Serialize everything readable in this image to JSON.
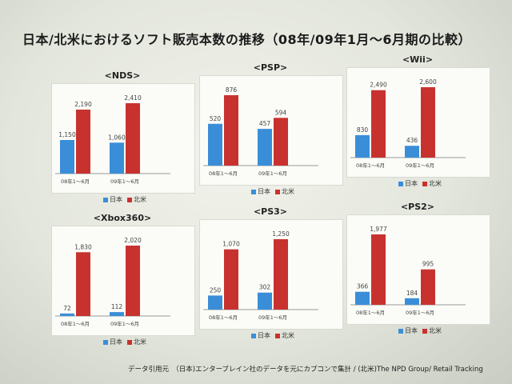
{
  "title": "日本/北米におけるソフト販売本数の推移（08年/09年1月～6月期の比較）",
  "colors": {
    "japan": "#3a8ed8",
    "na": "#c8322e"
  },
  "legend": {
    "japan": "日本",
    "na": "北米"
  },
  "footer": "データ引用元　（日本)エンターブレイン社のデータを元にカプコンで集計 / (北米)The NPD Group/ Retail Tracking",
  "chart_data": [
    {
      "type": "bar",
      "title": "<NDS>",
      "categories": [
        "08年1～6月",
        "09年1～6月"
      ],
      "series": [
        {
          "name": "日本",
          "values": [
            1150,
            1060
          ],
          "labels": [
            "1,150",
            "1,060"
          ]
        },
        {
          "name": "北米",
          "values": [
            2190,
            2410
          ],
          "labels": [
            "2,190",
            "2,410"
          ]
        }
      ]
    },
    {
      "type": "bar",
      "title": "<PSP>",
      "categories": [
        "08年1～6月",
        "09年1～6月"
      ],
      "series": [
        {
          "name": "日本",
          "values": [
            520,
            457
          ],
          "labels": [
            "520",
            "457"
          ]
        },
        {
          "name": "北米",
          "values": [
            876,
            594
          ],
          "labels": [
            "876",
            "594"
          ]
        }
      ]
    },
    {
      "type": "bar",
      "title": "<Wii>",
      "categories": [
        "08年1～6月",
        "09年1～6月"
      ],
      "series": [
        {
          "name": "日本",
          "values": [
            830,
            436
          ],
          "labels": [
            "830",
            "436"
          ]
        },
        {
          "name": "北米",
          "values": [
            2490,
            2600
          ],
          "labels": [
            "2,490",
            "2,600"
          ]
        }
      ]
    },
    {
      "type": "bar",
      "title": "<Xbox360>",
      "categories": [
        "08年1～6月",
        "09年1～6月"
      ],
      "series": [
        {
          "name": "日本",
          "values": [
            72,
            112
          ],
          "labels": [
            "72",
            "112"
          ]
        },
        {
          "name": "北米",
          "values": [
            1830,
            2020
          ],
          "labels": [
            "1,830",
            "2,020"
          ]
        }
      ]
    },
    {
      "type": "bar",
      "title": "<PS3>",
      "categories": [
        "08年1～6月",
        "09年1～6月"
      ],
      "series": [
        {
          "name": "日本",
          "values": [
            250,
            302
          ],
          "labels": [
            "250",
            "302"
          ]
        },
        {
          "name": "北米",
          "values": [
            1070,
            1250
          ],
          "labels": [
            "1,070",
            "1,250"
          ]
        }
      ]
    },
    {
      "type": "bar",
      "title": "<PS2>",
      "categories": [
        "08年1～6月",
        "09年1～6月"
      ],
      "series": [
        {
          "name": "日本",
          "values": [
            366,
            184
          ],
          "labels": [
            "366",
            "184"
          ]
        },
        {
          "name": "北米",
          "values": [
            1977,
            995
          ],
          "labels": [
            "1,977",
            "995"
          ]
        }
      ]
    }
  ]
}
